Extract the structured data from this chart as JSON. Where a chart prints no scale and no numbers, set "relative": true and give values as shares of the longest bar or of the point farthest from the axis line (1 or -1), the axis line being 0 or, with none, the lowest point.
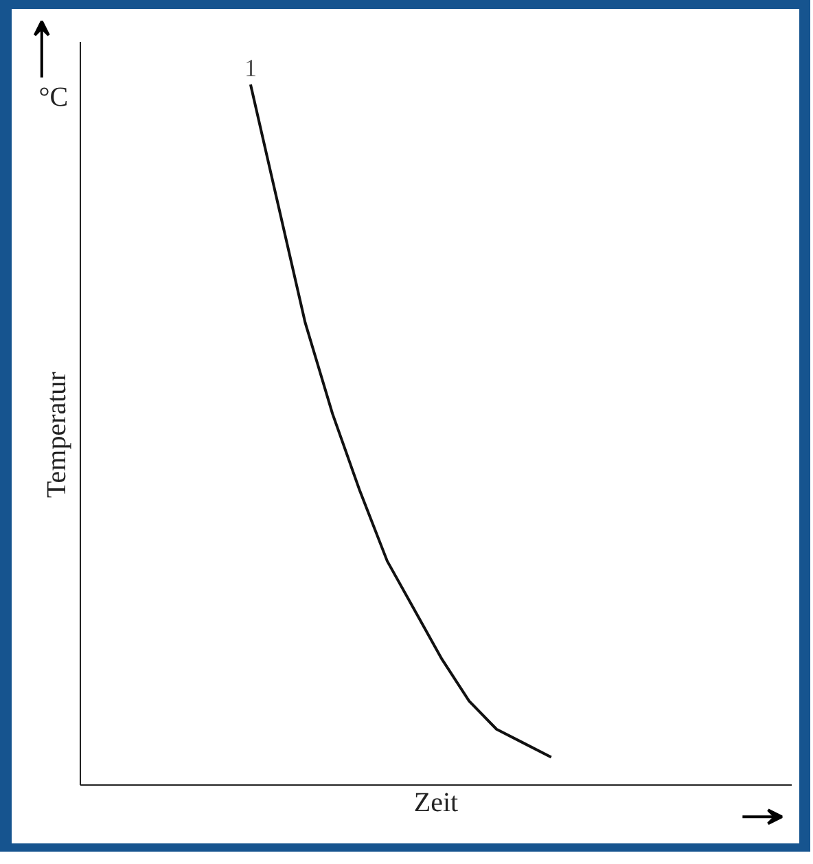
{
  "chart_data": {
    "type": "line",
    "relative": true,
    "xlabel": "Zeit",
    "annotations": [
      "Temperatur",
      "°C"
    ],
    "categories": [
      null,
      null,
      null,
      null,
      null,
      null,
      null,
      null,
      null,
      null,
      null,
      null
    ],
    "series": [
      {
        "name": "1",
        "color": "#111111",
        "values": [
          1.0,
          0.83,
          0.66,
          0.53,
          0.42,
          0.32,
          0.25,
          0.18,
          0.12,
          0.08,
          0.06,
          0.04
        ]
      }
    ],
    "marker": "none",
    "line_style": "solid"
  }
}
